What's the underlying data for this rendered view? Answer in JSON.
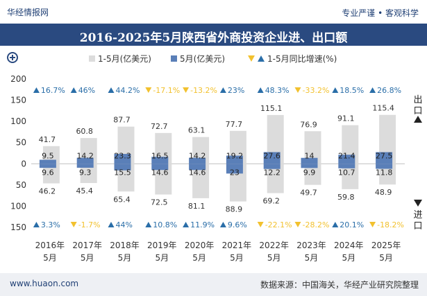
{
  "brand": {
    "name": "华经情报网"
  },
  "slogan": "专业严谨 • 客观科学",
  "title": "2016-2025年5月陕西省外商投资企业进、出口额",
  "footer": {
    "url": "www.huaon.com",
    "source": "数据来源：中国海关，华经产业研究院整理"
  },
  "side_labels": {
    "export": "出口",
    "import": "进口"
  },
  "colors": {
    "cumulative": "#dcdcdc",
    "monthly": "#5a7fb8",
    "up": "#2a6ea8",
    "down": "#f2c12e",
    "header": "#2a4a80"
  },
  "chart_data": {
    "type": "bar",
    "categories": [
      "2016年5月",
      "2017年5月",
      "2018年5月",
      "2019年5月",
      "2020年5月",
      "2021年5月",
      "2022年5月",
      "2023年5月",
      "2024年5月",
      "2025年5月"
    ],
    "category_lines": [
      [
        "2016年",
        "5月"
      ],
      [
        "2017年",
        "5月"
      ],
      [
        "2018年",
        "5月"
      ],
      [
        "2019年",
        "5月"
      ],
      [
        "2020年",
        "5月"
      ],
      [
        "2021年",
        "5月"
      ],
      [
        "2022年",
        "5月"
      ],
      [
        "2023年",
        "5月"
      ],
      [
        "2024年",
        "5月"
      ],
      [
        "2025年",
        "5月"
      ]
    ],
    "legend": [
      "1-5月(亿美元)",
      "5月(亿美元)",
      "1-5月同比增速(%)"
    ],
    "ylim": [
      -150,
      200
    ],
    "yticks": [
      -150,
      -100,
      -50,
      0,
      50,
      100,
      150,
      200
    ],
    "ytick_labels": [
      "150",
      "100",
      "50",
      "0",
      "50",
      "100",
      "150",
      "200"
    ],
    "export": {
      "cumulative": [
        41.7,
        60.8,
        87.7,
        72.7,
        63.1,
        77.7,
        115.1,
        76.9,
        91.1,
        115.4
      ],
      "monthly": [
        9.5,
        14.2,
        23.3,
        16.5,
        14.2,
        19.2,
        27.6,
        14,
        21.4,
        27.5
      ],
      "growth": [
        "16.7%",
        "46%",
        "44.2%",
        "-17.1%",
        "-13.2%",
        "23%",
        "48.3%",
        "-33.2%",
        "18.5%",
        "26.8%"
      ],
      "growth_dir": [
        "up",
        "up",
        "up",
        "down",
        "down",
        "up",
        "up",
        "down",
        "up",
        "up"
      ]
    },
    "import": {
      "cumulative": [
        46.2,
        45.4,
        65.4,
        72.5,
        81.1,
        88.9,
        69.2,
        49.7,
        59.8,
        48.9
      ],
      "monthly": [
        9.6,
        9.3,
        15.5,
        14.6,
        14.6,
        23,
        12.2,
        9.9,
        10.7,
        11.8
      ],
      "growth": [
        "3.3%",
        "-1.7%",
        "44%",
        "10.8%",
        "11.9%",
        "9.6%",
        "-22.1%",
        "-28.2%",
        "20.1%",
        "-18.2%"
      ],
      "growth_dir": [
        "up",
        "down",
        "up",
        "up",
        "up",
        "up",
        "down",
        "down",
        "up",
        "down"
      ]
    }
  }
}
